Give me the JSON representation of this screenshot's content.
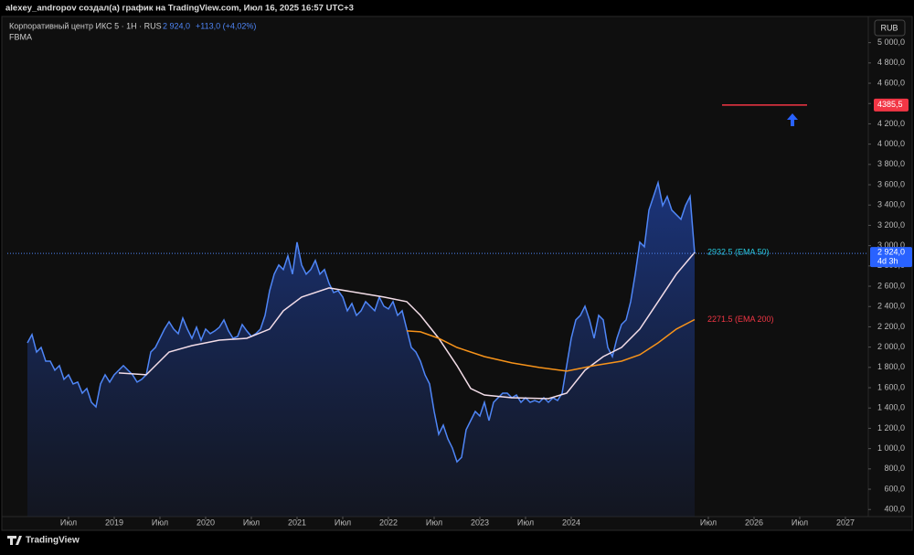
{
  "chart_data": {
    "type": "line",
    "header": "alexey_andropov создал(а) график на TradingView.com, Июл 16, 2025 16:57 UTC+3",
    "title": "Корпоративный центр ИКС 5 · 1H · RUS",
    "quote_text": "2 924,0",
    "change_text": "+113,0 (+4,02%)",
    "indicator": "FBMA",
    "currency": "RUB",
    "countdown": "4d 3h",
    "brand": "TradingView",
    "xlim": [
      2017.83,
      2027.25
    ],
    "ylim": [
      330,
      5240
    ],
    "xticks": [
      {
        "value": 2018.5,
        "label": "Июл"
      },
      2019,
      {
        "value": 2019.5,
        "label": "Июл"
      },
      2020,
      {
        "value": 2020.5,
        "label": "Июл"
      },
      2021,
      {
        "value": 2021.5,
        "label": "Июл"
      },
      2022,
      {
        "value": 2022.5,
        "label": "Июл"
      },
      2023,
      {
        "value": 2023.5,
        "label": "Июл"
      },
      2024,
      {
        "value": 2025.5,
        "label": "Июл"
      },
      2026,
      {
        "value": 2026.5,
        "label": "Июл"
      },
      2027
    ],
    "yticks": [
      {
        "value": 400,
        "label": "400,0"
      },
      {
        "value": 600,
        "label": "600,0"
      },
      {
        "value": 800,
        "label": "800,0"
      },
      {
        "value": 1000,
        "label": "1 000,0"
      },
      {
        "value": 1200,
        "label": "1 200,0"
      },
      {
        "value": 1400,
        "label": "1 400,0"
      },
      {
        "value": 1600,
        "label": "1 600,0"
      },
      {
        "value": 1800,
        "label": "1 800,0"
      },
      {
        "value": 2000,
        "label": "2 000,0"
      },
      {
        "value": 2200,
        "label": "2 200,0"
      },
      {
        "value": 2400,
        "label": "2 400,0"
      },
      {
        "value": 2600,
        "label": "2 600,0"
      },
      {
        "value": 2800,
        "label": "2 800,0"
      },
      {
        "value": 3000,
        "label": "3 000,0"
      },
      {
        "value": 3200,
        "label": "3 200,0"
      },
      {
        "value": 3400,
        "label": "3 400,0"
      },
      {
        "value": 3600,
        "label": "3 600,0"
      },
      {
        "value": 3800,
        "label": "3 800,0"
      },
      {
        "value": 4000,
        "label": "4 000,0"
      },
      {
        "value": 4200,
        "label": "4 200,0"
      },
      {
        "value": 4400,
        "label": "4 400,0"
      },
      {
        "value": 4600,
        "label": "4 600,0"
      },
      {
        "value": 4800,
        "label": "4 800,0"
      },
      {
        "value": 5000,
        "label": "5 000,0"
      }
    ],
    "series": [
      {
        "color": "#4f86f7",
        "area": true,
        "x": [
          2018.05,
          2018.1,
          2018.15,
          2018.2,
          2018.25,
          2018.3,
          2018.35,
          2018.4,
          2018.45,
          2018.5,
          2018.55,
          2018.6,
          2018.65,
          2018.7,
          2018.75,
          2018.8,
          2018.85,
          2018.9,
          2018.95,
          2019.0,
          2019.05,
          2019.1,
          2019.15,
          2019.2,
          2019.25,
          2019.3,
          2019.35,
          2019.4,
          2019.45,
          2019.5,
          2019.55,
          2019.6,
          2019.65,
          2019.7,
          2019.75,
          2019.8,
          2019.85,
          2019.9,
          2019.95,
          2020.0,
          2020.05,
          2020.1,
          2020.15,
          2020.2,
          2020.25,
          2020.3,
          2020.35,
          2020.4,
          2020.45,
          2020.5,
          2020.55,
          2020.6,
          2020.65,
          2020.7,
          2020.75,
          2020.8,
          2020.85,
          2020.9,
          2020.95,
          2021.0,
          2021.05,
          2021.1,
          2021.15,
          2021.2,
          2021.25,
          2021.3,
          2021.35,
          2021.4,
          2021.45,
          2021.5,
          2021.55,
          2021.6,
          2021.65,
          2021.7,
          2021.75,
          2021.8,
          2021.85,
          2021.9,
          2021.95,
          2022.0,
          2022.05,
          2022.1,
          2022.15,
          2022.2,
          2022.25,
          2022.3,
          2022.35,
          2022.4,
          2022.45,
          2022.5,
          2022.55,
          2022.6,
          2022.65,
          2022.7,
          2022.75,
          2022.8,
          2022.85,
          2022.9,
          2022.95,
          2023.0,
          2023.05,
          2023.1,
          2023.15,
          2023.2,
          2023.25,
          2023.3,
          2023.35,
          2023.4,
          2023.45,
          2023.5,
          2023.55,
          2023.6,
          2023.65,
          2023.7,
          2023.75,
          2023.8,
          2023.85,
          2023.9,
          2023.95,
          2024.0,
          2024.05,
          2024.1,
          2024.15,
          2024.2,
          2024.25,
          2024.3,
          2024.35,
          2024.4,
          2024.45,
          2024.5,
          2024.55,
          2024.6,
          2024.65,
          2024.7,
          2024.75,
          2024.8,
          2024.85,
          2024.9,
          2024.95,
          2025.0,
          2025.05,
          2025.1,
          2025.15,
          2025.2,
          2025.25,
          2025.3,
          2025.35
        ],
        "values": [
          2042,
          2124,
          1952,
          1997,
          1862,
          1862,
          1772,
          1817,
          1682,
          1727,
          1637,
          1655,
          1546,
          1592,
          1456,
          1411,
          1637,
          1727,
          1655,
          1727,
          1772,
          1817,
          1772,
          1727,
          1655,
          1682,
          1727,
          1952,
          1997,
          2087,
          2178,
          2250,
          2178,
          2133,
          2286,
          2178,
          2087,
          2196,
          2069,
          2178,
          2133,
          2160,
          2196,
          2268,
          2160,
          2087,
          2106,
          2223,
          2160,
          2106,
          2133,
          2178,
          2313,
          2556,
          2719,
          2809,
          2764,
          2899,
          2719,
          3034,
          2809,
          2719,
          2764,
          2854,
          2719,
          2764,
          2629,
          2538,
          2556,
          2493,
          2358,
          2430,
          2313,
          2358,
          2448,
          2403,
          2358,
          2493,
          2403,
          2376,
          2448,
          2313,
          2358,
          2178,
          1997,
          1952,
          1862,
          1727,
          1637,
          1366,
          1141,
          1231,
          1096,
          1005,
          870,
          915,
          1186,
          1276,
          1366,
          1321,
          1456,
          1276,
          1456,
          1501,
          1546,
          1546,
          1501,
          1528,
          1456,
          1501,
          1456,
          1474,
          1456,
          1501,
          1456,
          1501,
          1474,
          1546,
          1817,
          2087,
          2268,
          2313,
          2403,
          2268,
          2087,
          2313,
          2268,
          1997,
          1907,
          2087,
          2223,
          2268,
          2448,
          2719,
          3034,
          2989,
          3350,
          3485,
          3620,
          3395,
          3485,
          3350,
          3305,
          3260,
          3395,
          3485,
          2924
        ]
      },
      {
        "color": "#f3dde8",
        "label": "2932.5 (EMA 50)",
        "label_color": "#26c6da",
        "x": [
          2019.05,
          2019.35,
          2019.6,
          2019.85,
          2020.15,
          2020.45,
          2020.7,
          2020.85,
          2021.05,
          2021.35,
          2021.65,
          2021.95,
          2022.2,
          2022.35,
          2022.55,
          2022.75,
          2022.9,
          2023.05,
          2023.35,
          2023.75,
          2023.95,
          2024.15,
          2024.35,
          2024.55,
          2024.75,
          2024.95,
          2025.15,
          2025.35
        ],
        "values": [
          1745,
          1727,
          1952,
          2015,
          2069,
          2087,
          2178,
          2358,
          2493,
          2583,
          2538,
          2493,
          2448,
          2313,
          2087,
          1817,
          1592,
          1528,
          1501,
          1492,
          1546,
          1772,
          1907,
          1997,
          2178,
          2448,
          2719,
          2932.5
        ]
      },
      {
        "color": "#f7931a",
        "label": "2271.5 (EMA 200)",
        "label_color": "#f23645",
        "x": [
          2022.2,
          2022.35,
          2022.55,
          2022.75,
          2023.05,
          2023.35,
          2023.65,
          2023.95,
          2024.25,
          2024.55,
          2024.75,
          2024.95,
          2025.15,
          2025.35
        ],
        "values": [
          2160,
          2151,
          2087,
          1997,
          1907,
          1844,
          1799,
          1763,
          1817,
          1862,
          1925,
          2042,
          2178,
          2271.5
        ]
      }
    ],
    "last_price": {
      "value": 2924,
      "label": "2 924,0"
    },
    "target": {
      "value": 4385.5,
      "label": "4385,5",
      "x": [
        2025.65,
        2026.58
      ],
      "color": "#f23645"
    }
  }
}
